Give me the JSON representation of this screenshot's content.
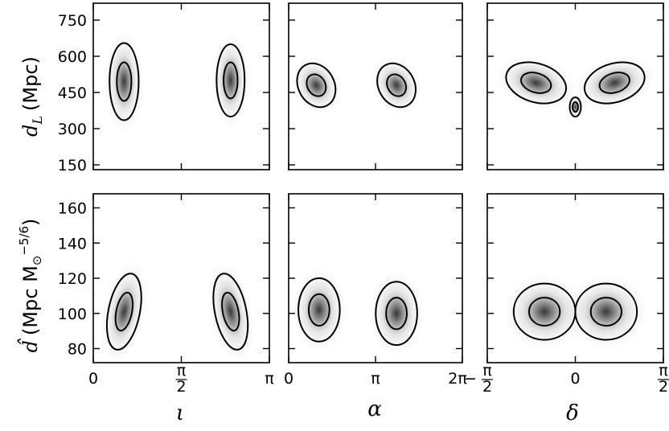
{
  "chart_data": [
    {
      "type": "density-contour",
      "panel": "top-left",
      "xlabel": "ι",
      "ylabel": "d_L (Mpc)",
      "xlim": [
        0,
        3.1416
      ],
      "ylim": [
        130,
        820
      ],
      "xticks": [
        {
          "v": 0,
          "label": "0"
        },
        {
          "v": 1.5708,
          "label": "π/2"
        },
        {
          "v": 3.1416,
          "label": "π"
        }
      ],
      "yticks": [
        {
          "v": 150,
          "label": "150"
        },
        {
          "v": 300,
          "label": "300"
        },
        {
          "v": 450,
          "label": "450"
        },
        {
          "v": 600,
          "label": "600"
        },
        {
          "v": 750,
          "label": "750"
        }
      ],
      "blobs": [
        {
          "cx": 0.55,
          "cy": 495,
          "rx": 0.26,
          "ry": 160,
          "tilt": 0
        },
        {
          "cx": 2.45,
          "cy": 500,
          "rx": 0.25,
          "ry": 150,
          "tilt": 0
        }
      ]
    },
    {
      "type": "density-contour",
      "panel": "top-middle",
      "xlabel": "α",
      "ylim": [
        130,
        820
      ],
      "xlim": [
        0,
        6.2832
      ],
      "xticks": [
        {
          "v": 0,
          "label": "0"
        },
        {
          "v": 3.1416,
          "label": "π"
        },
        {
          "v": 6.2832,
          "label": "2π"
        }
      ],
      "blobs": [
        {
          "cx": 1.0,
          "cy": 480,
          "rx": 0.65,
          "ry": 95,
          "tilt": -0.5
        },
        {
          "cx": 3.9,
          "cy": 480,
          "rx": 0.65,
          "ry": 95,
          "tilt": -0.5
        }
      ]
    },
    {
      "type": "density-contour",
      "panel": "top-right",
      "xlabel": "δ",
      "ylim": [
        130,
        820
      ],
      "xlim": [
        -1.5708,
        1.5708
      ],
      "xticks": [
        {
          "v": -1.5708,
          "label": "−π/2"
        },
        {
          "v": 0,
          "label": "0"
        },
        {
          "v": 1.5708,
          "label": "π/2"
        }
      ],
      "blobs": [
        {
          "cx": -0.7,
          "cy": 490,
          "rx": 0.55,
          "ry": 80,
          "tilt": 0.3
        },
        {
          "cx": 0.7,
          "cy": 490,
          "rx": 0.55,
          "ry": 80,
          "tilt": -0.3
        },
        {
          "cx": 0.0,
          "cy": 390,
          "rx": 0.1,
          "ry": 40,
          "tilt": 0
        }
      ]
    },
    {
      "type": "density-contour",
      "panel": "bottom-left",
      "xlabel": "ι",
      "ylabel": "d̂ (Mpc M⊙^−5/6)",
      "xlim": [
        0,
        3.1416
      ],
      "ylim": [
        72,
        168
      ],
      "xticks": [
        {
          "v": 0,
          "label": "0"
        },
        {
          "v": 1.5708,
          "label": "π/2"
        },
        {
          "v": 3.1416,
          "label": "π"
        }
      ],
      "yticks": [
        {
          "v": 80,
          "label": "80"
        },
        {
          "v": 100,
          "label": "100"
        },
        {
          "v": 120,
          "label": "120"
        },
        {
          "v": 140,
          "label": "140"
        },
        {
          "v": 160,
          "label": "160"
        }
      ],
      "blobs": [
        {
          "cx": 0.55,
          "cy": 101,
          "rx": 0.28,
          "ry": 22,
          "tilt": 0.2
        },
        {
          "cx": 2.45,
          "cy": 101,
          "rx": 0.28,
          "ry": 22,
          "tilt": -0.2
        }
      ]
    },
    {
      "type": "density-contour",
      "panel": "bottom-middle",
      "xlabel": "α",
      "ylim": [
        72,
        168
      ],
      "xlim": [
        0,
        6.2832
      ],
      "xticks": [
        {
          "v": 0,
          "label": "0"
        },
        {
          "v": 3.1416,
          "label": "π"
        },
        {
          "v": 6.2832,
          "label": "2π"
        }
      ],
      "blobs": [
        {
          "cx": 1.1,
          "cy": 102,
          "rx": 0.75,
          "ry": 18,
          "tilt": 0
        },
        {
          "cx": 3.9,
          "cy": 100,
          "rx": 0.75,
          "ry": 18,
          "tilt": 0
        }
      ]
    },
    {
      "type": "density-contour",
      "panel": "bottom-right",
      "xlabel": "δ",
      "ylim": [
        72,
        168
      ],
      "xlim": [
        -1.5708,
        1.5708
      ],
      "xticks": [
        {
          "v": -1.5708,
          "label": "−π/2"
        },
        {
          "v": 0,
          "label": "0"
        },
        {
          "v": 1.5708,
          "label": "π/2"
        }
      ],
      "blobs": [
        {
          "cx": -0.55,
          "cy": 101,
          "rx": 0.55,
          "ry": 16,
          "tilt": 0
        },
        {
          "cx": 0.55,
          "cy": 101,
          "rx": 0.55,
          "ry": 16,
          "tilt": 0
        }
      ]
    }
  ],
  "labels": {
    "y_top": "d",
    "y_top_sub": "L",
    "y_top_unit": "(Mpc)",
    "y_bot": "d̂",
    "y_bot_unit": "(Mpc M",
    "y_bot_sun": "⊙",
    "y_bot_exp": "−5/6",
    "x_left": "ι",
    "x_mid": "α",
    "x_right": "δ"
  },
  "colors": {
    "contour": "#000000",
    "density": "#000000",
    "axis": "#000000"
  }
}
